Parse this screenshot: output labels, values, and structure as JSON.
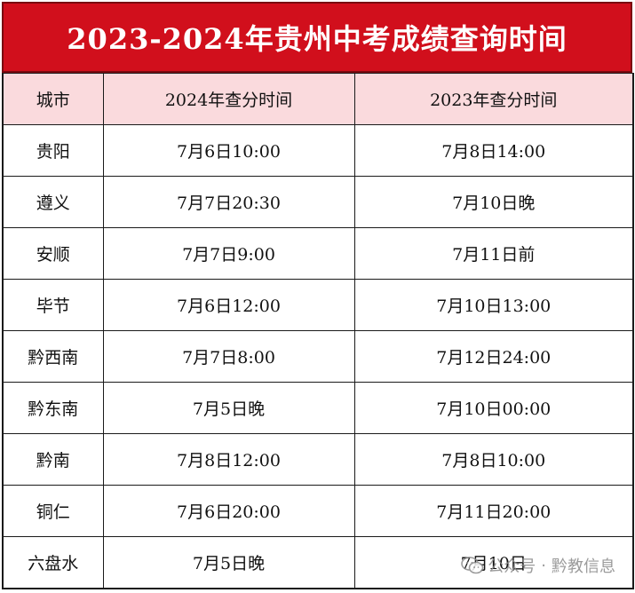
{
  "title": "2023-2024年贵州中考成绩查询时间",
  "table": {
    "headers": [
      "城市",
      "2024年查分时间",
      "2023年查分时间"
    ],
    "rows": [
      [
        "贵阳",
        "7月6日10:00",
        "7月8日14:00"
      ],
      [
        "遵义",
        "7月7日20:30",
        "7月10日晚"
      ],
      [
        "安顺",
        "7月7日9:00",
        "7月11日前"
      ],
      [
        "毕节",
        "7月6日12:00",
        "7月10日13:00"
      ],
      [
        "黔西南",
        "7月7日8:00",
        "7月12日24:00"
      ],
      [
        "黔东南",
        "7月5日晚",
        "7月10日00:00"
      ],
      [
        "黔南",
        "7月8日12:00",
        "7月8日10:00"
      ],
      [
        "铜仁",
        "7月6日20:00",
        "7月11日20:00"
      ],
      [
        "六盘水",
        "7月5日晚",
        "7月10日"
      ]
    ]
  },
  "watermark": {
    "prefix": "公众号",
    "separator": "·",
    "name": "黔教信息",
    "icon": "wechat-icon"
  },
  "colors": {
    "title_bg": "#d10f1c",
    "title_text": "#ffffff",
    "header_bg": "#fadadd",
    "border": "#1a1a1a"
  }
}
